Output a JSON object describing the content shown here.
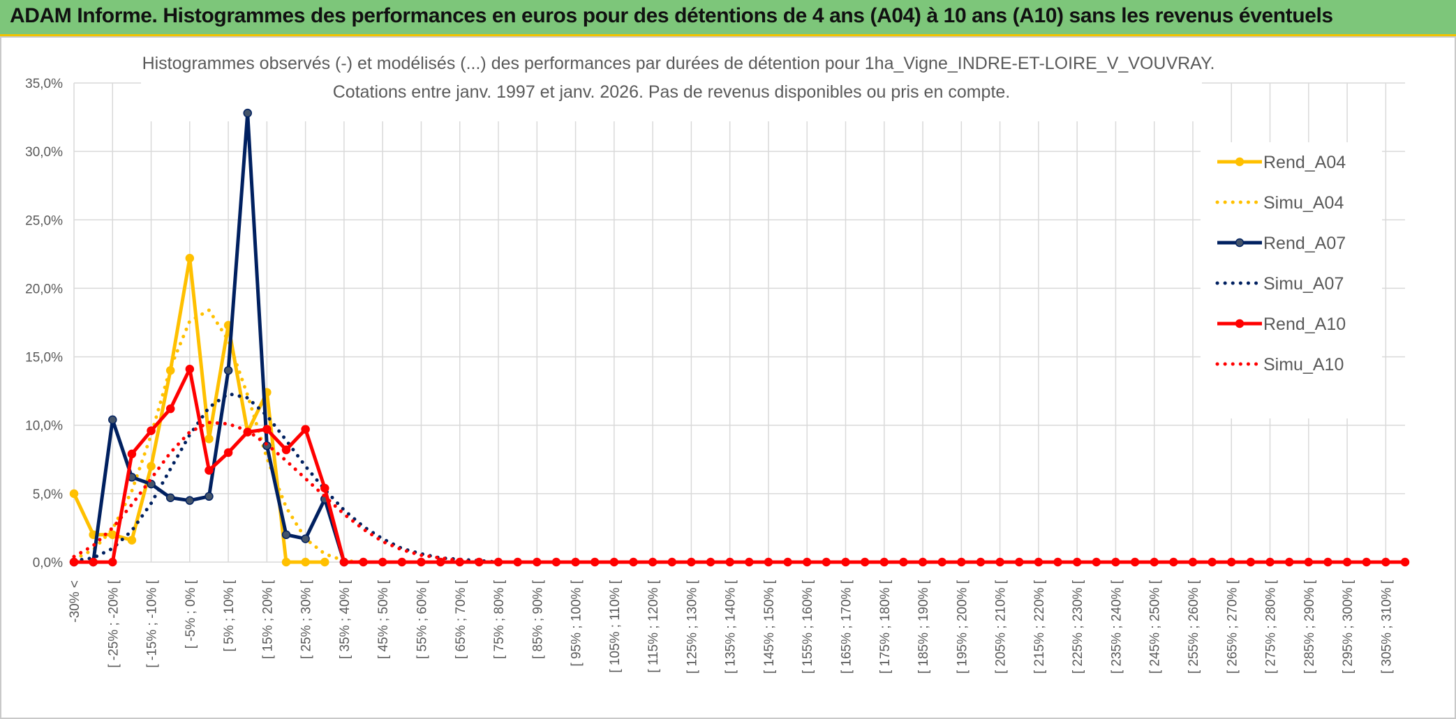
{
  "header": {
    "title": "ADAM Informe. Histogrammes des performances en euros pour des détentions de 4 ans (A04) à 10 ans (A10) sans les revenus éventuels"
  },
  "chart_data": {
    "type": "line",
    "title": "Histogrammes observés (-) et modélisés (...) des performances par durées de détention pour 1ha_Vigne_INDRE-ET-LOIRE_V_VOUVRAY.",
    "subtitle": "Cotations entre janv. 1997 et janv. 2026. Pas de revenus disponibles ou pris en compte.",
    "xlabel": "",
    "ylabel": "",
    "ylim": [
      0,
      35
    ],
    "yticks": [
      0,
      5,
      10,
      15,
      20,
      25,
      30,
      35
    ],
    "ytick_labels": [
      "0,0%",
      "5,0%",
      "10,0%",
      "15,0%",
      "20,0%",
      "25,0%",
      "30,0%",
      "35,0%"
    ],
    "grid": true,
    "legend_position": "right",
    "x_tick_labels": [
      "-30% <",
      "[ -25% ; -20% [",
      "[ -15% ; -10% [",
      "[ -5% ; 0% [",
      "[ 5% ; 10% [",
      "[ 15% ; 20% [",
      "[ 25% ; 30% [",
      "[ 35% ; 40% [",
      "[ 45% ; 50% [",
      "[ 55% ; 60% [",
      "[ 65% ; 70% [",
      "[ 75% ; 80% [",
      "[ 85% ; 90% [",
      "[ 95% ; 100% [",
      "[ 105% ; 110% [",
      "[ 115% ; 120% [",
      "[ 125% ; 130% [",
      "[ 135% ; 140% [",
      "[ 145% ; 150% [",
      "[ 155% ; 160% [",
      "[ 165% ; 170% [",
      "[ 175% ; 180% [",
      "[ 185% ; 190% [",
      "[ 195% ; 200% [",
      "[ 205% ; 210% [",
      "[ 215% ; 220% [",
      "[ 225% ; 230% [",
      "[ 235% ; 240% [",
      "[ 245% ; 250% [",
      "[ 255% ; 260% [",
      "[ 265% ; 270% [",
      "[ 275% ; 280% [",
      "[ 285% ; 290% [",
      "[ 295% ; 300% [",
      "[ 305% ; 310% ["
    ],
    "x_tick_label_category_index": [
      0,
      2,
      4,
      6,
      8,
      10,
      12,
      14,
      16,
      18,
      20,
      22,
      24,
      26,
      28,
      30,
      32,
      34,
      36,
      38,
      40,
      42,
      44,
      46,
      48,
      50,
      52,
      54,
      56,
      58,
      60,
      62,
      64,
      66,
      68
    ],
    "category_count": 70,
    "series": [
      {
        "name": "Rend_A04",
        "style": "solid",
        "marker": true,
        "color": "#ffc000",
        "values": [
          5.0,
          2.0,
          2.0,
          1.6,
          7.0,
          14.0,
          22.2,
          9.0,
          17.3,
          9.5,
          12.4,
          0.0,
          0.0,
          0.0
        ]
      },
      {
        "name": "Simu_A04",
        "style": "dotted",
        "marker": false,
        "color": "#ffc000",
        "values": [
          0.2,
          0.9,
          2.4,
          5.2,
          9.3,
          14.2,
          17.6,
          18.4,
          16.2,
          12.2,
          7.6,
          4.0,
          1.7,
          0.6,
          0.1,
          0.0
        ]
      },
      {
        "name": "Rend_A07",
        "style": "solid",
        "marker": true,
        "color": "#002060",
        "values": [
          0.0,
          0.0,
          10.4,
          6.2,
          5.7,
          4.7,
          4.5,
          4.8,
          14.0,
          32.8,
          8.5,
          2.0,
          1.7,
          4.6,
          0.0
        ]
      },
      {
        "name": "Simu_A07",
        "style": "dotted",
        "marker": false,
        "color": "#002060",
        "values": [
          0.1,
          0.3,
          1.0,
          2.3,
          4.3,
          6.8,
          9.3,
          11.3,
          12.3,
          12.0,
          10.7,
          8.9,
          7.0,
          5.3,
          3.8,
          2.6,
          1.7,
          1.0,
          0.6,
          0.3,
          0.2,
          0.1,
          0.0
        ]
      },
      {
        "name": "Rend_A10",
        "style": "solid",
        "marker": true,
        "color": "#ff0000",
        "values": [
          0.0,
          0.0,
          0.0,
          7.9,
          9.6,
          11.2,
          14.1,
          6.7,
          8.0,
          9.5,
          9.7,
          8.2,
          9.7,
          5.4,
          0.0,
          0.0,
          0.0,
          0.0,
          0.0,
          0.0,
          0.0,
          0.0,
          0.0,
          0.0,
          0.0,
          0.0,
          0.0,
          0.0,
          0.0,
          0.0,
          0.0,
          0.0,
          0.0,
          0.0,
          0.0,
          0.0,
          0.0,
          0.0,
          0.0,
          0.0,
          0.0,
          0.0,
          0.0,
          0.0,
          0.0,
          0.0,
          0.0,
          0.0,
          0.0,
          0.0,
          0.0,
          0.0,
          0.0,
          0.0,
          0.0,
          0.0,
          0.0,
          0.0,
          0.0,
          0.0,
          0.0,
          0.0,
          0.0,
          0.0,
          0.0,
          0.0,
          0.0,
          0.0,
          0.0,
          0.0
        ]
      },
      {
        "name": "Simu_A10",
        "style": "dotted",
        "marker": false,
        "color": "#ff0000",
        "values": [
          0.4,
          1.2,
          2.5,
          4.2,
          6.1,
          8.0,
          9.5,
          10.2,
          10.1,
          9.6,
          8.6,
          7.4,
          6.1,
          4.8,
          3.5,
          2.4,
          1.5,
          0.9,
          0.5,
          0.3,
          0.1,
          0.0
        ]
      }
    ]
  }
}
